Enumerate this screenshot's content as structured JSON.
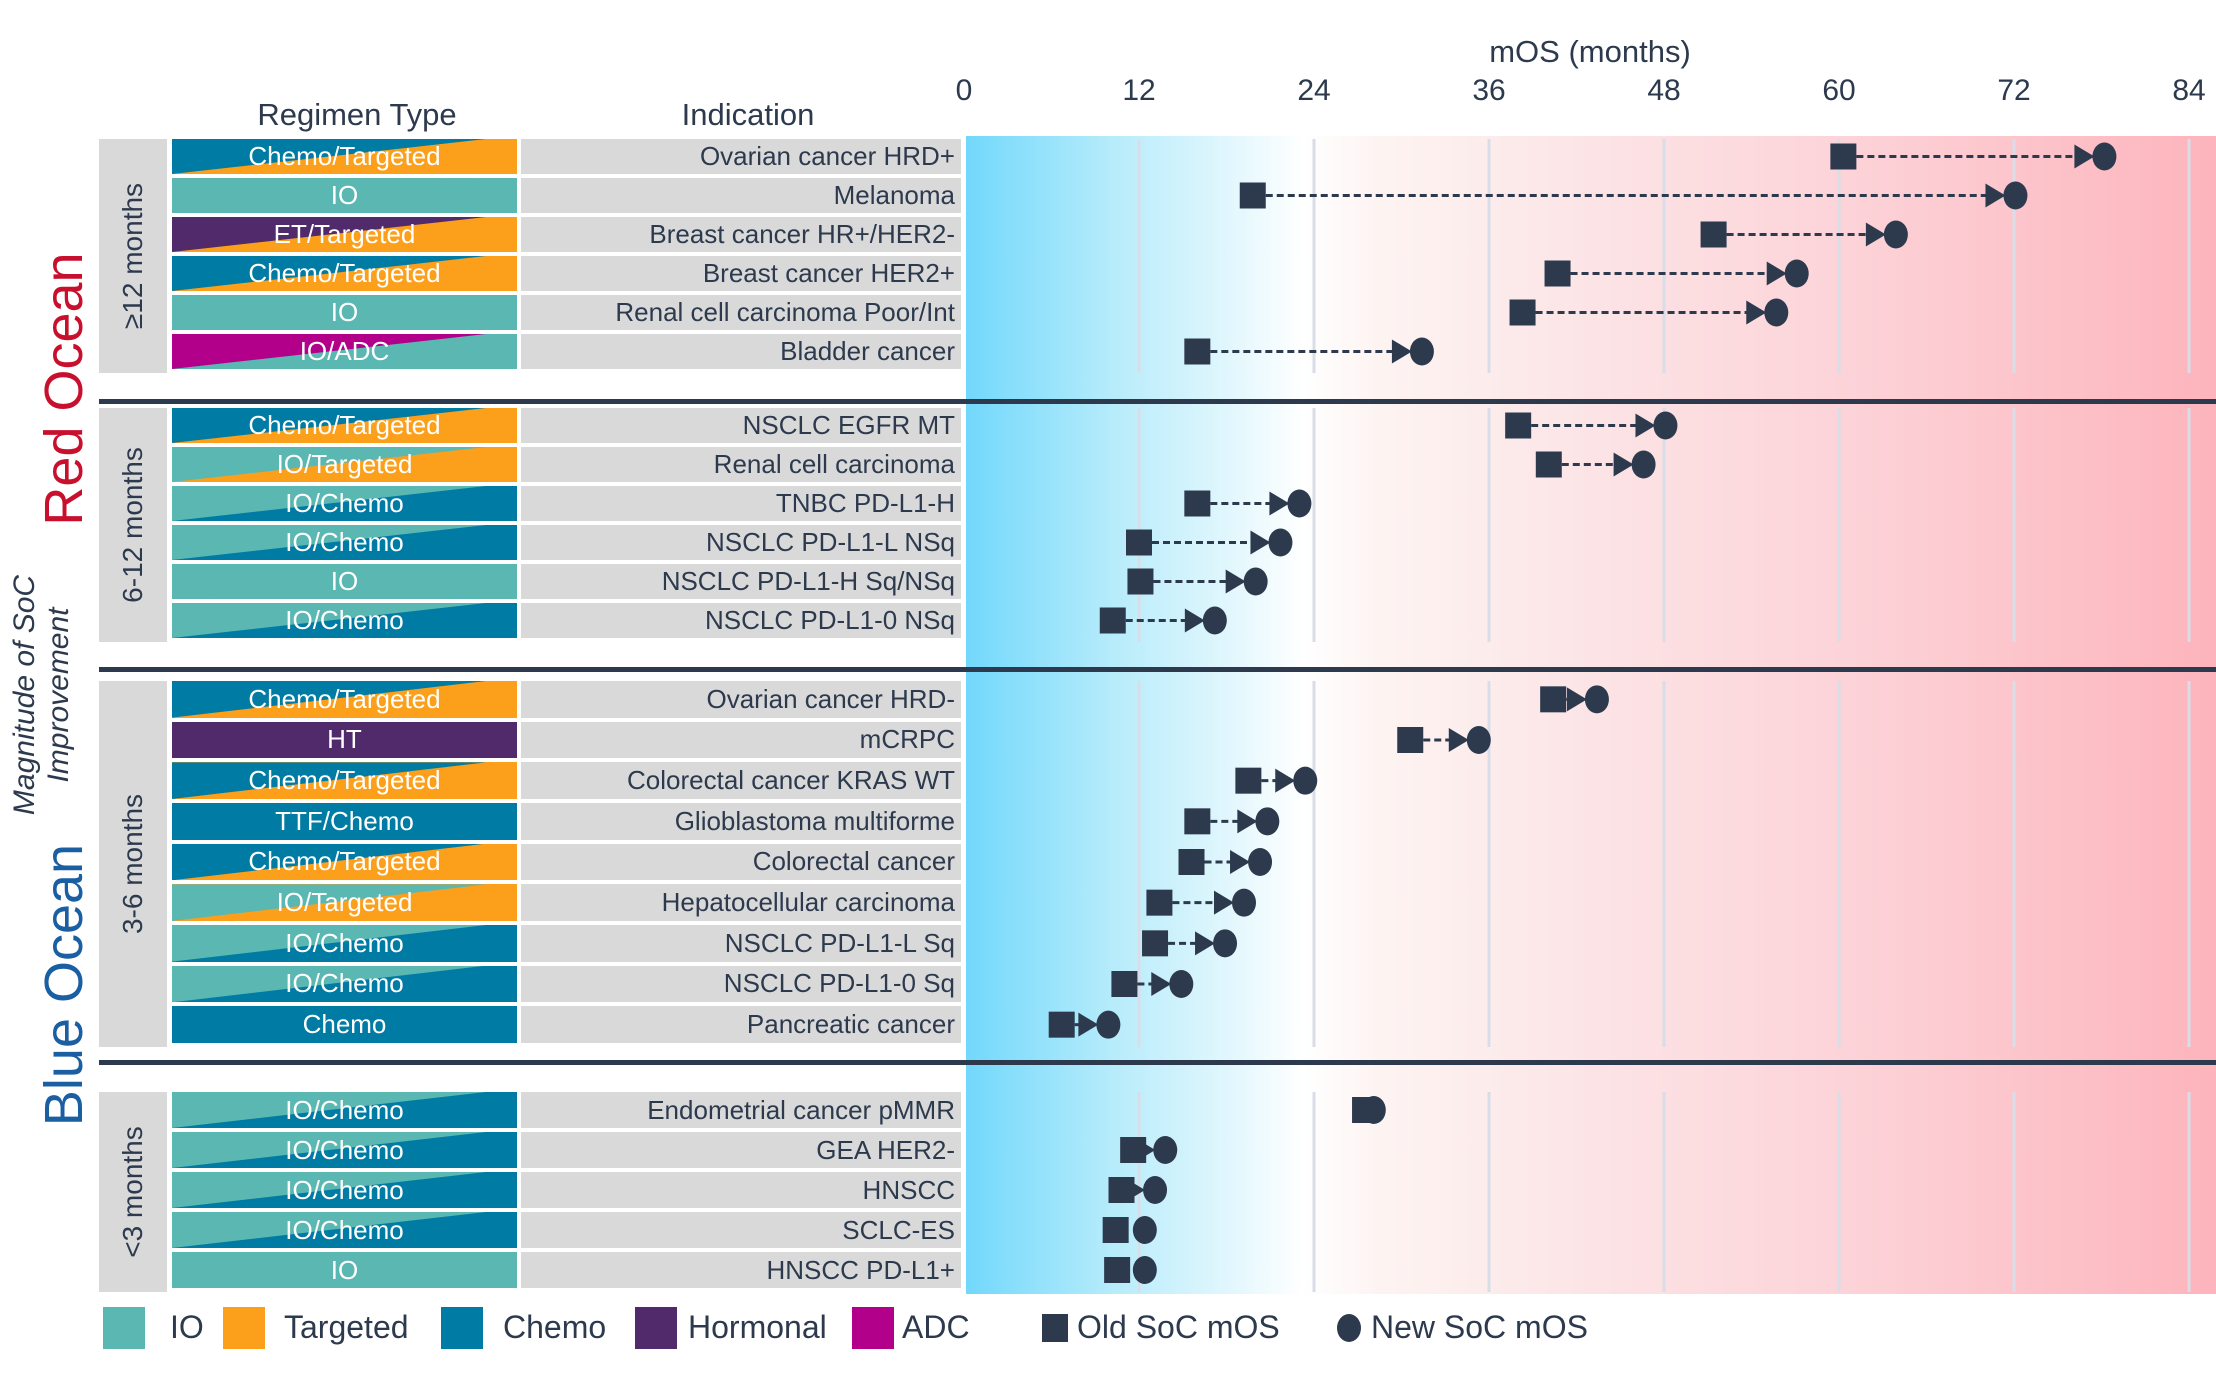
{
  "headers": {
    "regimen": "Regimen Type",
    "indication": "Indication"
  },
  "side_labels": {
    "red_ocean": "Red Ocean",
    "blue_ocean": "Blue Ocean",
    "magnitude_line1": "Magnitude of SoC",
    "magnitude_line2": "Improvement"
  },
  "colors": {
    "IO": "#5bb7b1",
    "Targeted": "#fc9f1a",
    "Chemo": "#007ba3",
    "Hormonal": "#512a6b",
    "ADC": "#b3008b",
    "marker": "#2d3a4e",
    "red_ocean": "#c8102e",
    "blue_ocean": "#1b5fa3"
  },
  "groups": [
    {
      "label": "≥12 months",
      "rows": [
        {
          "regimen": "Chemo/Targeted",
          "colors": [
            "Chemo",
            "Targeted"
          ],
          "indication": "Ovarian cancer HRD+"
        },
        {
          "regimen": "IO",
          "colors": [
            "IO",
            "IO"
          ],
          "indication": "Melanoma"
        },
        {
          "regimen": "ET/Targeted",
          "colors": [
            "Hormonal",
            "Targeted"
          ],
          "indication": "Breast cancer HR+/HER2-"
        },
        {
          "regimen": "Chemo/Targeted",
          "colors": [
            "Chemo",
            "Targeted"
          ],
          "indication": "Breast cancer HER2+"
        },
        {
          "regimen": "IO",
          "colors": [
            "IO",
            "IO"
          ],
          "indication": "Renal cell carcinoma Poor/Int"
        },
        {
          "regimen": "IO/ADC",
          "colors": [
            "ADC",
            "IO"
          ],
          "indication": "Bladder cancer"
        }
      ]
    },
    {
      "label": "6-12 months",
      "rows": [
        {
          "regimen": "Chemo/Targeted",
          "colors": [
            "Chemo",
            "Targeted"
          ],
          "indication": "NSCLC EGFR MT"
        },
        {
          "regimen": "IO/Targeted",
          "colors": [
            "IO",
            "Targeted"
          ],
          "indication": "Renal cell carcinoma"
        },
        {
          "regimen": "IO/Chemo",
          "colors": [
            "IO",
            "Chemo"
          ],
          "indication": "TNBC PD-L1-H"
        },
        {
          "regimen": "IO/Chemo",
          "colors": [
            "IO",
            "Chemo"
          ],
          "indication": "NSCLC PD-L1-L NSq"
        },
        {
          "regimen": "IO",
          "colors": [
            "IO",
            "IO"
          ],
          "indication": "NSCLC PD-L1-H Sq/NSq"
        },
        {
          "regimen": "IO/Chemo",
          "colors": [
            "IO",
            "Chemo"
          ],
          "indication": "NSCLC PD-L1-0 NSq"
        }
      ]
    },
    {
      "label": "3-6 months",
      "rows": [
        {
          "regimen": "Chemo/Targeted",
          "colors": [
            "Chemo",
            "Targeted"
          ],
          "indication": "Ovarian cancer HRD-"
        },
        {
          "regimen": "HT",
          "colors": [
            "Hormonal",
            "Hormonal"
          ],
          "indication": "mCRPC"
        },
        {
          "regimen": "Chemo/Targeted",
          "colors": [
            "Chemo",
            "Targeted"
          ],
          "indication": "Colorectal cancer KRAS WT"
        },
        {
          "regimen": "TTF/Chemo",
          "colors": [
            "Chemo",
            "Chemo"
          ],
          "indication": "Glioblastoma multiforme"
        },
        {
          "regimen": "Chemo/Targeted",
          "colors": [
            "Chemo",
            "Targeted"
          ],
          "indication": "Colorectal cancer"
        },
        {
          "regimen": "IO/Targeted",
          "colors": [
            "IO",
            "Targeted"
          ],
          "indication": "Hepatocellular carcinoma"
        },
        {
          "regimen": "IO/Chemo",
          "colors": [
            "IO",
            "Chemo"
          ],
          "indication": "NSCLC PD-L1-L Sq"
        },
        {
          "regimen": "IO/Chemo",
          "colors": [
            "IO",
            "Chemo"
          ],
          "indication": "NSCLC PD-L1-0 Sq"
        },
        {
          "regimen": "Chemo",
          "colors": [
            "Chemo",
            "Chemo"
          ],
          "indication": "Pancreatic cancer"
        }
      ]
    },
    {
      "label": "<3 months",
      "rows": [
        {
          "regimen": "IO/Chemo",
          "colors": [
            "IO",
            "Chemo"
          ],
          "indication": "Endometrial cancer pMMR"
        },
        {
          "regimen": "IO/Chemo",
          "colors": [
            "IO",
            "Chemo"
          ],
          "indication": "GEA HER2-"
        },
        {
          "regimen": "IO/Chemo",
          "colors": [
            "IO",
            "Chemo"
          ],
          "indication": "HNSCC"
        },
        {
          "regimen": "IO/Chemo",
          "colors": [
            "IO",
            "Chemo"
          ],
          "indication": "SCLC-ES"
        },
        {
          "regimen": "IO",
          "colors": [
            "IO",
            "IO"
          ],
          "indication": "HNSCC PD-L1+"
        }
      ]
    }
  ],
  "legend": {
    "items": [
      {
        "label": "IO",
        "color": "IO"
      },
      {
        "label": "Targeted",
        "color": "Targeted"
      },
      {
        "label": "Chemo",
        "color": "Chemo"
      },
      {
        "label": "Hormonal",
        "color": "Hormonal"
      },
      {
        "label": "ADC",
        "color": "ADC"
      }
    ],
    "old": "Old SoC mOS",
    "new": "New SoC mOS"
  },
  "chart_data": {
    "type": "scatter",
    "xlabel": "mOS (months)",
    "xlim": [
      0,
      84
    ],
    "xticks": [
      0,
      12,
      24,
      36,
      48,
      60,
      72,
      84
    ],
    "grid": true,
    "background": "gradient blue (low) to white at 24 to red (high)",
    "categories": [
      "Ovarian cancer HRD+",
      "Melanoma",
      "Breast cancer HR+/HER2-",
      "Breast cancer HER2+",
      "Renal cell carcinoma Poor/Int",
      "Bladder cancer",
      "NSCLC EGFR MT",
      "Renal cell carcinoma",
      "TNBC PD-L1-H",
      "NSCLC PD-L1-L NSq",
      "NSCLC PD-L1-H Sq/NSq",
      "NSCLC PD-L1-0 NSq",
      "Ovarian cancer HRD-",
      "mCRPC",
      "Colorectal cancer KRAS WT",
      "Glioblastoma multiforme",
      "Colorectal cancer",
      "Hepatocellular carcinoma",
      "NSCLC PD-L1-L Sq",
      "NSCLC PD-L1-0 Sq",
      "Pancreatic cancer",
      "Endometrial cancer pMMR",
      "GEA HER2-",
      "HNSCC",
      "SCLC-ES",
      "HNSCC PD-L1+"
    ],
    "series": [
      {
        "name": "Old SoC mOS",
        "marker": "square",
        "values": [
          60.3,
          19.8,
          51.4,
          40.7,
          38.3,
          16.0,
          38.0,
          40.1,
          16.0,
          12.0,
          12.1,
          10.2,
          40.4,
          30.6,
          19.5,
          16.0,
          15.6,
          13.4,
          13.1,
          11.0,
          6.7,
          27.5,
          11.6,
          10.8,
          10.4,
          10.5
        ]
      },
      {
        "name": "New SoC mOS",
        "marker": "circle",
        "values": [
          78.2,
          72.1,
          63.9,
          57.1,
          55.7,
          31.4,
          48.1,
          46.6,
          23.0,
          21.7,
          20.0,
          17.2,
          43.4,
          35.3,
          23.4,
          20.8,
          20.3,
          19.2,
          17.9,
          14.9,
          9.9,
          28.1,
          13.8,
          13.1,
          12.4,
          12.4
        ]
      }
    ]
  }
}
